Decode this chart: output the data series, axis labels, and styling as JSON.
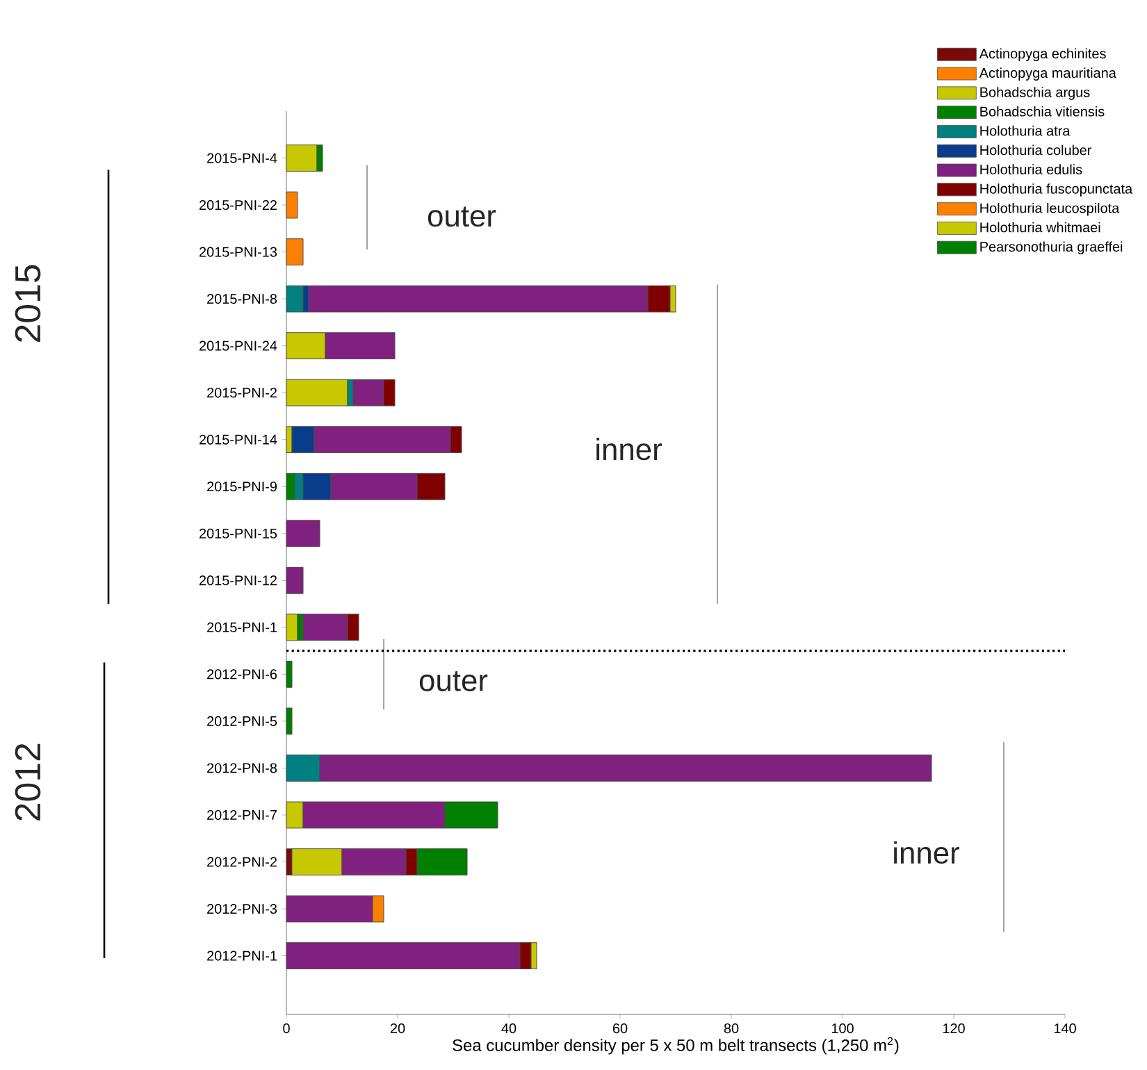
{
  "chart_data": {
    "type": "bar",
    "orientation": "horizontal",
    "stacked": true,
    "legend": "top right",
    "xlabel": "Sea cucumber density per 5 x 50 m belt transects (1,250 m$^{2}$)",
    "xlim": [
      0,
      140
    ],
    "xticks": [
      0,
      20,
      40,
      60,
      80,
      100,
      120,
      140
    ],
    "categories": [
      "2015-PNI-4",
      "2015-PNI-22",
      "2015-PNI-13",
      "2015-PNI-8",
      "2015-PNI-24",
      "2015-PNI-2",
      "2015-PNI-14",
      "2015-PNI-9",
      "2015-PNI-15",
      "2015-PNI-12",
      "2015-PNI-1",
      "2012-PNI-6",
      "2012-PNI-5",
      "2012-PNI-8",
      "2012-PNI-7",
      "2012-PNI-2",
      "2012-PNI-3",
      "2012-PNI-1"
    ],
    "series": [
      {
        "name": "Actinopyga echinites",
        "color": "#7a0a0a",
        "values": [
          null,
          null,
          null,
          null,
          null,
          null,
          null,
          null,
          null,
          null,
          null,
          null,
          null,
          null,
          null,
          1,
          null,
          null
        ]
      },
      {
        "name": "Actinopyga mauritiana",
        "color": "#ff8000",
        "values": [
          null,
          2,
          3,
          null,
          null,
          null,
          null,
          null,
          null,
          null,
          null,
          null,
          null,
          null,
          null,
          null,
          null,
          null
        ]
      },
      {
        "name": "Bohadschia argus",
        "color": "#c8c800",
        "values": [
          5.5,
          null,
          null,
          null,
          7,
          11,
          1,
          null,
          null,
          null,
          2,
          null,
          null,
          null,
          3,
          9,
          null,
          null
        ]
      },
      {
        "name": "Bohadschia vitiensis",
        "color": "#008000",
        "values": [
          1,
          null,
          null,
          null,
          null,
          null,
          null,
          1.5,
          null,
          null,
          1,
          null,
          null,
          null,
          null,
          null,
          null,
          null
        ]
      },
      {
        "name": "Holothuria atra",
        "color": "#008080",
        "values": [
          null,
          null,
          null,
          3,
          null,
          1,
          null,
          1.5,
          null,
          null,
          null,
          null,
          null,
          6,
          null,
          null,
          null,
          null
        ]
      },
      {
        "name": "Holothuria coluber",
        "color": "#0a3c8c",
        "values": [
          null,
          null,
          null,
          1,
          null,
          null,
          4,
          5,
          null,
          null,
          null,
          null,
          null,
          null,
          null,
          null,
          null,
          null
        ]
      },
      {
        "name": "Holothuria edulis",
        "color": "#80207f",
        "values": [
          null,
          null,
          null,
          61,
          12.5,
          5.5,
          24.5,
          15.5,
          6,
          3,
          8,
          null,
          null,
          110,
          25.5,
          11.5,
          15.5,
          42
        ]
      },
      {
        "name": "Holothuria fuscopunctata",
        "color": "#800000",
        "values": [
          null,
          null,
          null,
          4,
          null,
          2,
          2,
          5,
          null,
          null,
          2,
          null,
          null,
          null,
          null,
          2,
          null,
          2
        ]
      },
      {
        "name": "Holothuria leucospilota",
        "color": "#ff8000",
        "values": [
          null,
          null,
          null,
          null,
          null,
          null,
          null,
          null,
          null,
          null,
          null,
          null,
          null,
          null,
          null,
          null,
          2,
          null
        ]
      },
      {
        "name": "Holothuria whitmaei",
        "color": "#c8c800",
        "values": [
          null,
          null,
          null,
          1,
          null,
          null,
          null,
          null,
          null,
          null,
          null,
          null,
          null,
          null,
          null,
          null,
          null,
          1
        ]
      },
      {
        "name": "Pearsonothuria graeffei",
        "color": "#008000",
        "values": [
          null,
          null,
          null,
          null,
          null,
          null,
          null,
          null,
          null,
          null,
          null,
          1,
          1,
          null,
          9.5,
          9,
          null,
          null
        ]
      }
    ],
    "annotations": [
      "2015",
      "2012",
      "outer",
      "inner",
      "outer",
      "inner"
    ]
  }
}
